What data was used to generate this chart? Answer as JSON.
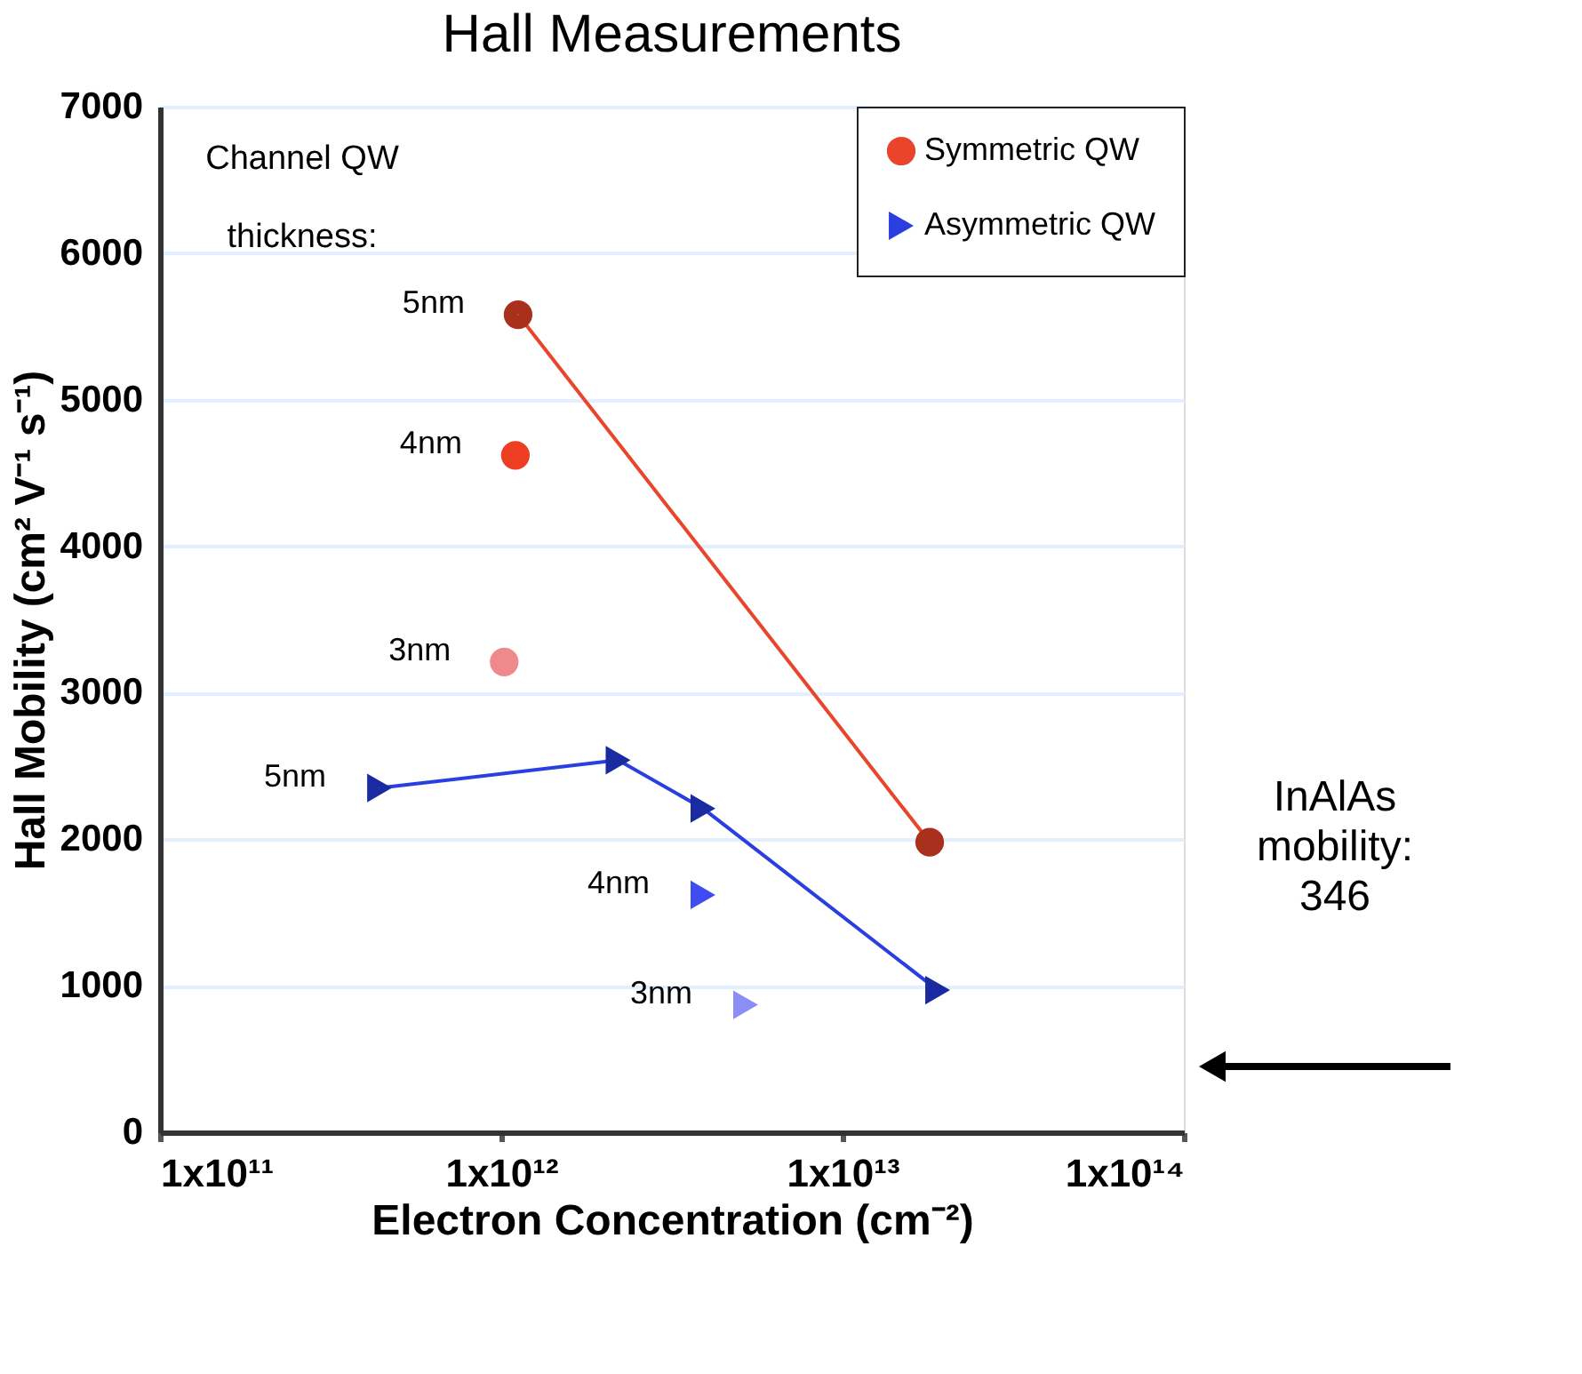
{
  "chart_data": {
    "type": "line",
    "title": "Hall Measurements",
    "xlabel": "Electron Concentration (cm⁻²)",
    "ylabel": "Hall Mobility (cm² V⁻¹ s⁻¹)",
    "log": "x",
    "xlim": [
      100000000000.0,
      100000000000000.0
    ],
    "xticks": [
      {
        "value": 100000000000.0,
        "label": "1x10¹¹"
      },
      {
        "value": 1000000000000.0,
        "label": "1x10¹²"
      },
      {
        "value": 10000000000000.0,
        "label": "1x10¹³"
      },
      {
        "value": 100000000000000.0,
        "label": "1x10¹⁴"
      }
    ],
    "ylim": [
      0,
      7000
    ],
    "yticks": [
      0,
      1000,
      2000,
      3000,
      4000,
      5000,
      6000,
      7000
    ],
    "grid": "y",
    "legend": "top right",
    "series": [
      {
        "name": "Symmetric QW",
        "marker": "circle",
        "color": "#e8452c",
        "x": [
          1120000000000.0,
          18000000000000.0
        ],
        "values": [
          5580,
          1980
        ],
        "colors": [
          "#a8301c",
          "#a8301c"
        ]
      },
      {
        "type": "scatter",
        "marker": "circle",
        "x": [
          1100000000000.0,
          1020000000000.0
        ],
        "values": [
          4620,
          3210
        ],
        "colors": [
          "#ee3e22",
          "#ee8a8a"
        ]
      },
      {
        "name": "Asymmetric QW",
        "marker": "triangle",
        "color": "#2a3fe0",
        "x": [
          440000000000.0,
          2200000000000.0,
          3900000000000.0,
          19000000000000.0
        ],
        "values": [
          2350,
          2540,
          2210,
          970
        ],
        "colors": [
          "#1a2aa0",
          "#1a2aa0",
          "#1a2aa0",
          "#1a2aa0"
        ]
      },
      {
        "type": "scatter",
        "marker": "triangle",
        "x": [
          3900000000000.0,
          5200000000000.0
        ],
        "values": [
          1620,
          870
        ],
        "colors": [
          "#3f4cf0",
          "#8a8ef5"
        ]
      }
    ],
    "annotations": [
      "Channel QW\nthickness:",
      {
        "text": "5nm",
        "x": 1120000000000.0,
        "y": 5580
      },
      {
        "text": "4nm",
        "x": 1100000000000.0,
        "y": 4620
      },
      {
        "text": "3nm",
        "x": 1020000000000.0,
        "y": 3210
      },
      {
        "text": "5nm",
        "x": 440000000000.0,
        "y": 2350
      },
      {
        "text": "4nm",
        "x": 3900000000000.0,
        "y": 1620
      },
      {
        "text": "3nm",
        "x": 5200000000000.0,
        "y": 870
      },
      "InAlAs\nmobility:\n346"
    ]
  }
}
